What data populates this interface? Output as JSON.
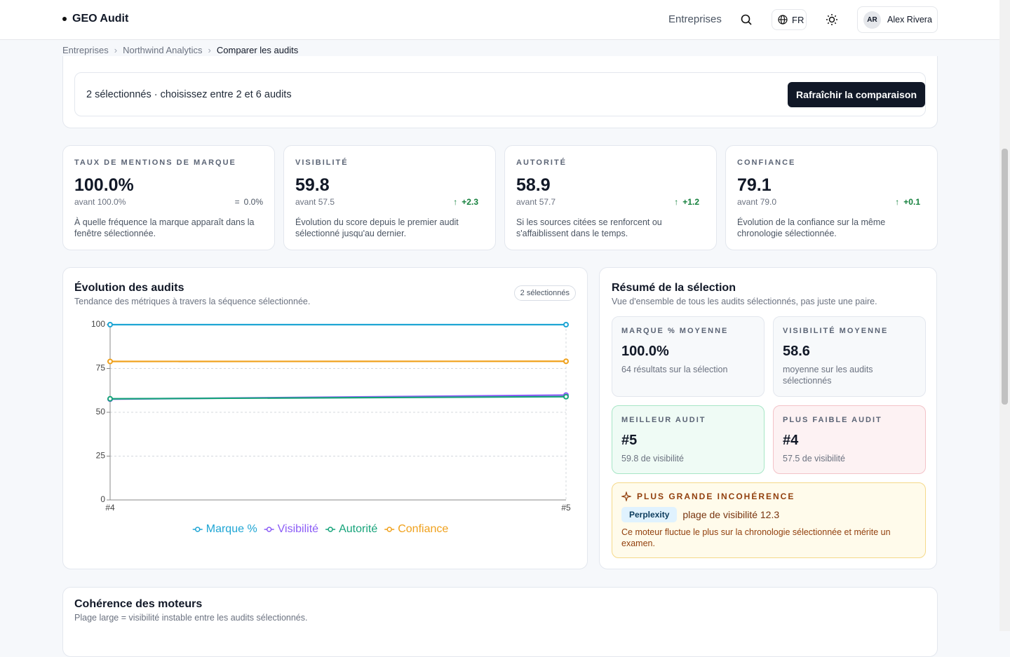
{
  "header": {
    "brand": "GEO Audit",
    "nav": "Entreprises",
    "language": "FR",
    "user_initials": "AR",
    "user_name": "Alex Rivera"
  },
  "breadcrumb": [
    "Entreprises",
    "Northwind Analytics",
    "Comparer les audits"
  ],
  "selection": {
    "status": "2 sélectionnés · choisissez entre 2 et 6 audits",
    "button": "Rafraîchir la comparaison"
  },
  "metrics": [
    {
      "label": "TAUX DE MENTIONS DE MARQUE",
      "value": "100.0%",
      "previous": "avant 100.0%",
      "delta": "0.0%",
      "description": "À quelle fréquence la marque apparaît dans la fenêtre sélectionnée."
    },
    {
      "label": "VISIBILITÉ",
      "value": "59.8",
      "previous": "avant 57.5",
      "delta": "+2.3",
      "description": "Évolution du score depuis le premier audit sélectionné jusqu'au dernier."
    },
    {
      "label": "AUTORITÉ",
      "value": "58.9",
      "previous": "avant 57.7",
      "delta": "+1.2",
      "description": "Si les sources citées se renforcent ou s'affaiblissent dans le temps."
    },
    {
      "label": "CONFIANCE",
      "value": "79.1",
      "previous": "avant 79.0",
      "delta": "+0.1",
      "description": "Évolution de la confiance sur la même chronologie sélectionnée."
    }
  ],
  "evolution": {
    "title": "Évolution des audits",
    "subtitle": "Tendance des métriques à travers la séquence sélectionnée.",
    "badge": "2 sélectionnés"
  },
  "chart_data": {
    "type": "line",
    "categories": [
      "#4",
      "#5"
    ],
    "series": [
      {
        "name": "Marque %",
        "color": "#1ea5d4",
        "values": [
          100,
          100
        ]
      },
      {
        "name": "Visibilité",
        "color": "#8b5cf6",
        "values": [
          57.5,
          59.8
        ]
      },
      {
        "name": "Autorité",
        "color": "#16a37a",
        "values": [
          57.7,
          58.9
        ]
      },
      {
        "name": "Confiance",
        "color": "#f0a11c",
        "values": [
          79.0,
          79.1
        ]
      }
    ],
    "ylim": [
      0,
      100
    ],
    "yticks": [
      0,
      25,
      50,
      75,
      100
    ],
    "grid": true
  },
  "summary": {
    "title": "Résumé de la sélection",
    "subtitle": "Vue d'ensemble de tous les audits sélectionnés, pas juste une paire.",
    "cards": [
      {
        "label": "MARQUE % MOYENNE",
        "value": "100.0%",
        "note": "64 résultats sur la sélection",
        "tone": "neutral"
      },
      {
        "label": "VISIBILITÉ MOYENNE",
        "value": "58.6",
        "note": "moyenne sur les audits sélectionnés",
        "tone": "neutral"
      },
      {
        "label": "MEILLEUR AUDIT",
        "value": "#5",
        "note": "59.8 de visibilité",
        "tone": "success"
      },
      {
        "label": "PLUS FAIBLE AUDIT",
        "value": "#4",
        "note": "57.5 de visibilité",
        "tone": "danger"
      }
    ],
    "inconsistency": {
      "label": "PLUS GRANDE INCOHÉRENCE",
      "engine": "Perplexity",
      "range": "plage de visibilité 12.3",
      "note": "Ce moteur fluctue le plus sur la chronologie sélectionnée et mérite un examen."
    }
  },
  "consistency": {
    "title": "Cohérence des moteurs",
    "subtitle": "Plage large = visibilité instable entre les audits sélectionnés."
  }
}
